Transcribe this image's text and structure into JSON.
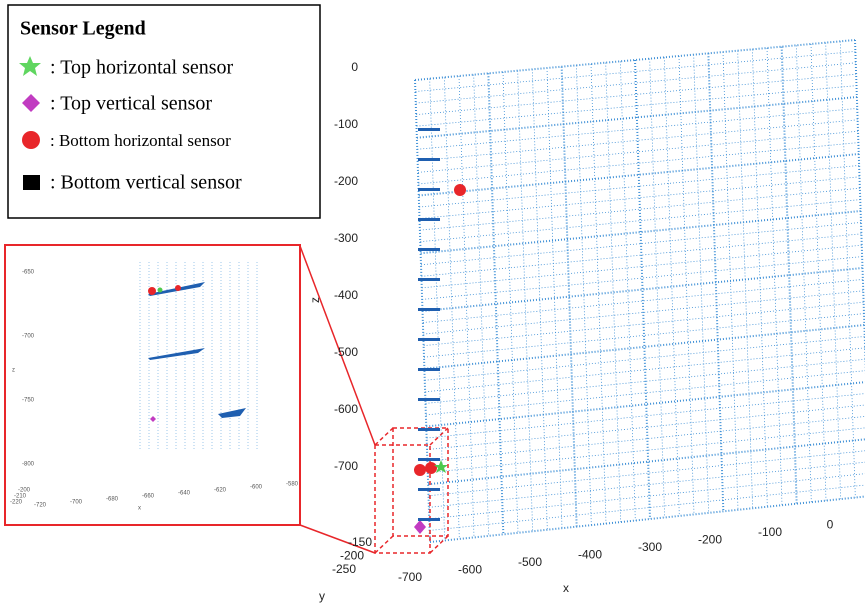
{
  "legend": {
    "title": "Sensor Legend",
    "entries": [
      ": Top horizontal sensor",
      ": Top vertical sensor",
      ": Bottom horizontal sensor",
      ": Bottom vertical sensor"
    ]
  },
  "plot": {
    "z_axis": {
      "label": "z",
      "ticks": [
        "0",
        "-100",
        "-200",
        "-300",
        "-400",
        "-500",
        "-600",
        "-700"
      ]
    },
    "y_axis": {
      "label": "y",
      "ticks": [
        "-150",
        "-200",
        "-250"
      ]
    },
    "x_axis": {
      "label": "x",
      "ticks": [
        "-700",
        "-600",
        "-500",
        "-400",
        "-300",
        "-200",
        "-100",
        "0"
      ]
    }
  },
  "inset": {
    "z_axis": {
      "label": "z",
      "ticks": [
        "-650",
        "-700",
        "-750",
        "-800"
      ]
    },
    "y_axis": {
      "ticks": [
        "-200",
        "-210",
        "-220"
      ]
    },
    "x_axis": {
      "label": "x",
      "ticks": [
        "-720",
        "-700",
        "-680",
        "-660",
        "-640",
        "-620",
        "-600",
        "-580"
      ]
    }
  }
}
